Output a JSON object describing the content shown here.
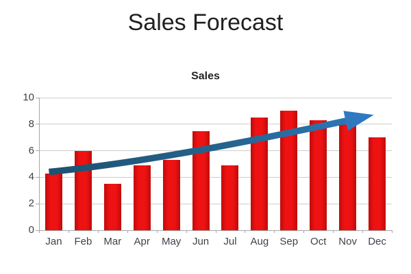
{
  "page": {
    "title": "Sales Forecast",
    "background": "#ffffff"
  },
  "chart": {
    "title": "Sales",
    "colors": {
      "bar": "#ee1212",
      "bar_edge": "#bf0b0b",
      "arrow_tail": "#1d5270",
      "arrow_head": "#2e79c0",
      "gridline": "#cccccc",
      "axis": "#a6a6a6",
      "label": "#3d4248",
      "title": "#1f1f1f"
    }
  },
  "chart_data": {
    "type": "bar",
    "title": "Sales",
    "categories": [
      "Jan",
      "Feb",
      "Mar",
      "Apr",
      "May",
      "Jun",
      "Jul",
      "Aug",
      "Sep",
      "Oct",
      "Nov",
      "Dec"
    ],
    "values": [
      4.3,
      6.0,
      3.5,
      4.9,
      5.3,
      7.5,
      4.9,
      8.5,
      9.0,
      8.3,
      8.0,
      7.0
    ],
    "xlabel": "",
    "ylabel": "",
    "ylim": [
      0,
      10
    ],
    "yticks": [
      0,
      2,
      4,
      6,
      8,
      10
    ],
    "grid": true,
    "legend": false,
    "annotations": [
      {
        "type": "trend-arrow",
        "label": "upward sales trend",
        "from": {
          "category": "Jan",
          "value": 4.4
        },
        "to": {
          "category": "Dec",
          "value": 8.7
        }
      }
    ]
  }
}
